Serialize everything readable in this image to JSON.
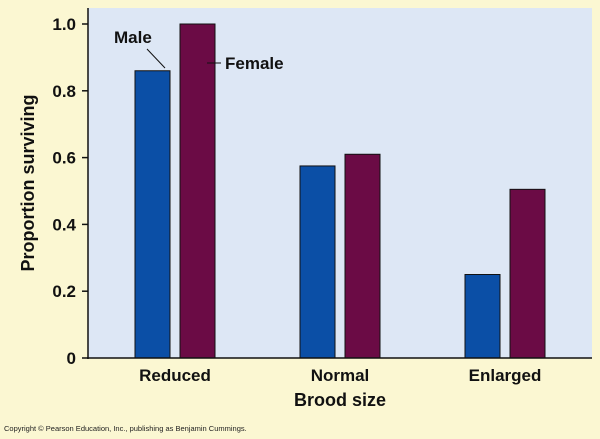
{
  "chart_data": {
    "type": "bar",
    "categories": [
      "Reduced",
      "Normal",
      "Enlarged"
    ],
    "series": [
      {
        "name": "Male",
        "color": "#0b4fa6",
        "values": [
          0.86,
          0.575,
          0.25
        ]
      },
      {
        "name": "Female",
        "color": "#6b0b45",
        "values": [
          1.0,
          0.61,
          0.505
        ]
      }
    ],
    "xlabel": "Brood size",
    "ylabel": "Proportion surviving",
    "ylim": [
      0,
      1.0
    ],
    "yticks": [
      0,
      0.2,
      0.4,
      0.6,
      0.8,
      1.0
    ],
    "ytick_labels": [
      "0",
      "0.2",
      "0.4",
      "0.6",
      "0.8",
      "1.0"
    ],
    "grid": false,
    "legend": "annotation labels with leader lines, top-left"
  },
  "colors": {
    "plot_background": "#dde7f5",
    "page_background": "#fbf7d2",
    "axis": "#111111"
  },
  "footer": {
    "copyright": "Copyright © Pearson Education, Inc., publishing as Benjamin Cummings."
  }
}
